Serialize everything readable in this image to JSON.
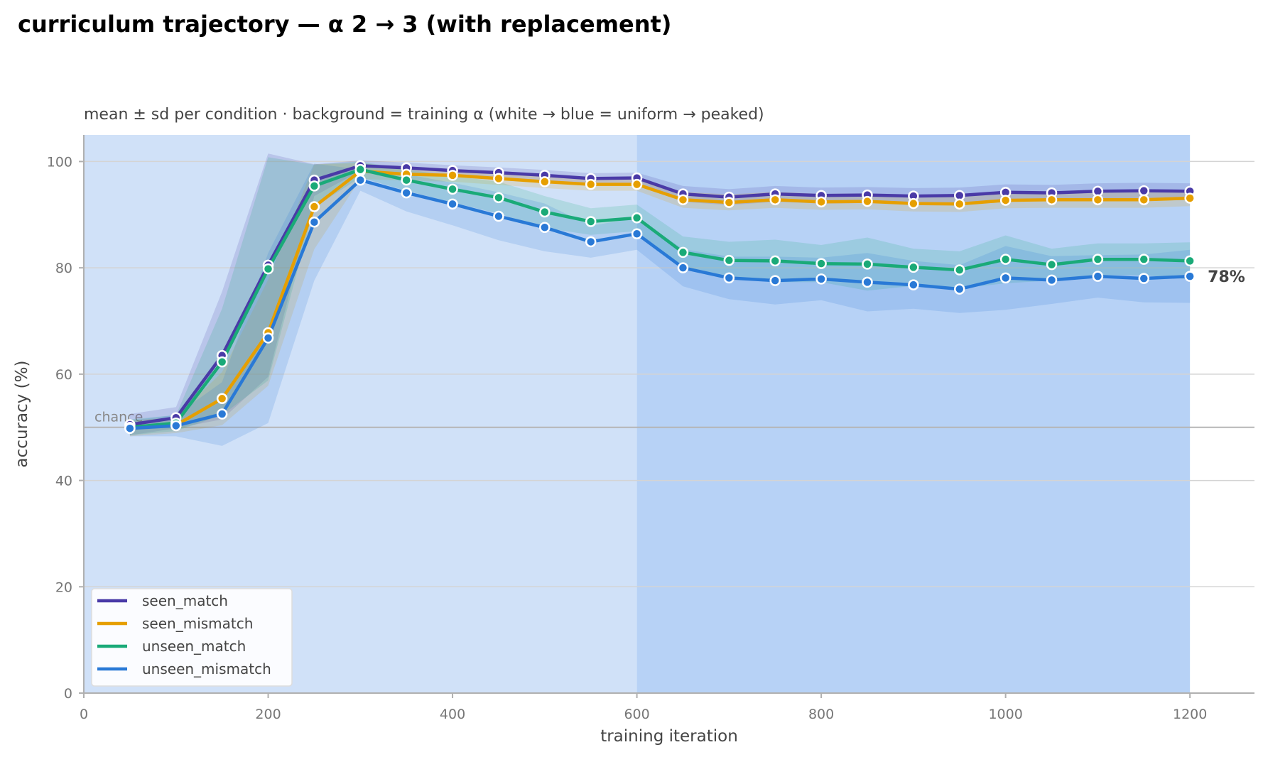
{
  "chart_data": {
    "type": "line",
    "title": "curriculum trajectory — α 2 → 3 (with replacement)",
    "subtitle": "mean ± sd per condition · background = training α (white → blue = uniform → peaked)",
    "xlabel": "training iteration",
    "ylabel": "accuracy (%)",
    "xlim": [
      0,
      1270
    ],
    "ylim": [
      0,
      105
    ],
    "xticks": [
      0,
      200,
      400,
      600,
      800,
      1000,
      1200
    ],
    "yticks": [
      0,
      20,
      40,
      60,
      80,
      100
    ],
    "grid": "horizontal",
    "legend_position": "bottom-left",
    "chance": {
      "value": 50,
      "label": "chance"
    },
    "end_label": {
      "series": "unseen_mismatch",
      "text": "78%"
    },
    "background_bands": [
      {
        "x0": 0,
        "x1": 600,
        "alpha": 2,
        "color": "#d0e1f8"
      },
      {
        "x0": 600,
        "x1": 1200,
        "alpha": 3,
        "color": "#b7d2f6"
      }
    ],
    "x": [
      50,
      100,
      150,
      200,
      250,
      300,
      350,
      400,
      450,
      500,
      550,
      600,
      650,
      700,
      750,
      800,
      850,
      900,
      950,
      1000,
      1050,
      1100,
      1150,
      1200
    ],
    "series": [
      {
        "name": "seen_match",
        "color": "#4a3aa7",
        "values": [
          50.5,
          51.8,
          63.5,
          80.5,
          96.5,
          99.2,
          98.8,
          98.3,
          97.9,
          97.4,
          96.8,
          96.9,
          93.9,
          93.3,
          93.9,
          93.6,
          93.7,
          93.5,
          93.6,
          94.2,
          94.1,
          94.4,
          94.5,
          94.4
        ],
        "sd": [
          2.0,
          2.0,
          12.0,
          21.0,
          3.0,
          1.0,
          1.0,
          1.0,
          1.0,
          1.0,
          1.0,
          1.0,
          1.5,
          1.5,
          1.5,
          1.5,
          1.5,
          1.5,
          1.5,
          1.5,
          1.5,
          1.5,
          1.5,
          1.5
        ]
      },
      {
        "name": "seen_mismatch",
        "color": "#e69f00",
        "values": [
          49.8,
          50.4,
          55.4,
          67.8,
          91.5,
          98.2,
          97.6,
          97.4,
          96.8,
          96.2,
          95.7,
          95.7,
          92.8,
          92.3,
          92.8,
          92.4,
          92.5,
          92.1,
          92.0,
          92.7,
          92.8,
          92.8,
          92.8,
          93.1
        ],
        "sd": [
          1.5,
          1.5,
          5.0,
          10.0,
          8.0,
          1.5,
          1.2,
          1.2,
          1.2,
          1.2,
          1.2,
          1.2,
          1.5,
          1.5,
          1.5,
          1.5,
          1.5,
          1.5,
          1.5,
          1.5,
          1.5,
          1.5,
          1.5,
          1.5
        ]
      },
      {
        "name": "unseen_match",
        "color": "#1aaa78",
        "values": [
          50.0,
          50.8,
          62.3,
          79.8,
          95.4,
          98.5,
          96.5,
          94.8,
          93.2,
          90.5,
          88.7,
          89.4,
          82.9,
          81.4,
          81.3,
          80.8,
          80.7,
          80.1,
          79.6,
          81.6,
          80.6,
          81.6,
          81.6,
          81.3
        ],
        "sd": [
          1.5,
          1.5,
          10.0,
          21.0,
          4.0,
          1.5,
          2.0,
          2.5,
          3.0,
          3.0,
          2.5,
          2.5,
          3.0,
          3.5,
          4.0,
          3.5,
          5.0,
          3.5,
          3.5,
          4.5,
          3.0,
          3.0,
          3.0,
          3.5
        ]
      },
      {
        "name": "unseen_mismatch",
        "color": "#2979d6",
        "values": [
          49.8,
          50.3,
          52.5,
          66.8,
          88.6,
          96.5,
          94.1,
          92.0,
          89.7,
          87.6,
          84.9,
          86.4,
          80.0,
          78.1,
          77.6,
          77.9,
          77.3,
          76.8,
          76.0,
          78.1,
          77.7,
          78.4,
          78.0,
          78.4
        ],
        "sd": [
          1.5,
          2.0,
          6.0,
          16.0,
          11.0,
          2.0,
          3.5,
          4.0,
          4.5,
          4.5,
          3.0,
          3.0,
          3.5,
          4.0,
          4.5,
          4.0,
          5.5,
          4.5,
          4.5,
          6.0,
          4.5,
          4.0,
          4.5,
          5.0
        ]
      }
    ]
  }
}
